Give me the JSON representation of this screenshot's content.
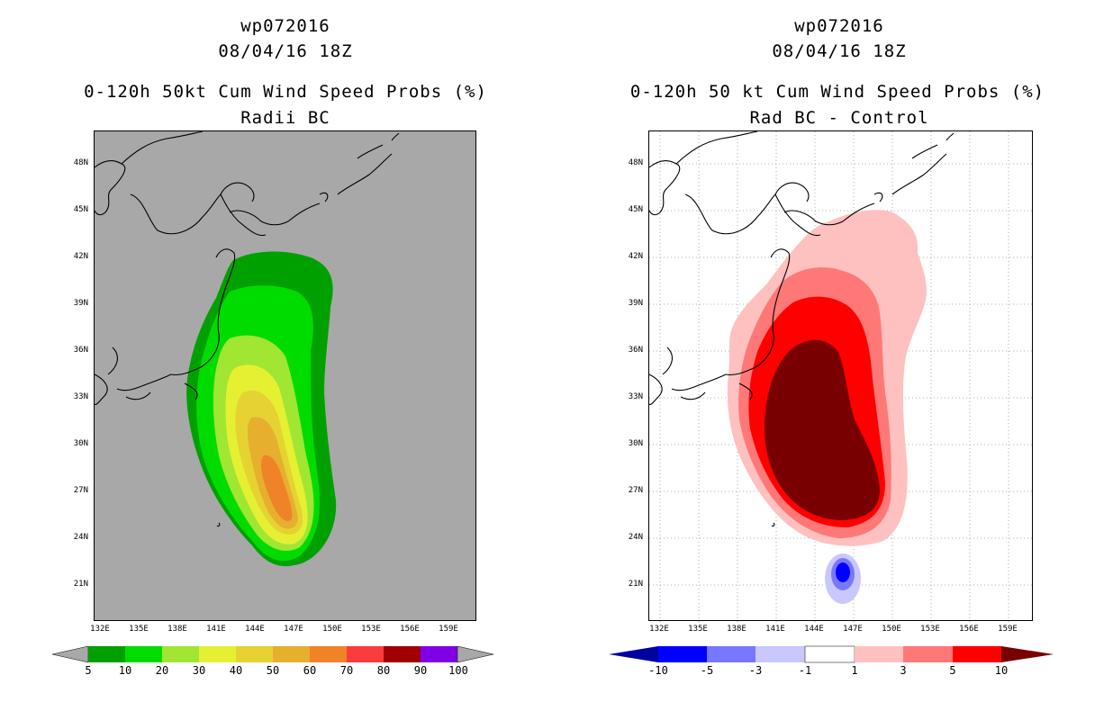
{
  "left_panel": {
    "storm_id": "wp072016",
    "datetime": "08/04/16 18Z",
    "title": "0-120h 50kt Cum Wind Speed Probs (%)",
    "subtitle": "Radii BC",
    "background_color": "#a8a8a8",
    "lat_labels": [
      "48N",
      "45N",
      "42N",
      "39N",
      "36N",
      "33N",
      "30N",
      "27N",
      "24N",
      "21N"
    ],
    "lon_labels": [
      "132E",
      "135E",
      "138E",
      "141E",
      "144E",
      "147E",
      "150E",
      "153E",
      "156E",
      "159E"
    ],
    "colorbar": {
      "levels": [
        "5",
        "10",
        "20",
        "30",
        "40",
        "50",
        "60",
        "70",
        "80",
        "90",
        "100"
      ],
      "colors": [
        "#00a000",
        "#00dc00",
        "#a0e632",
        "#e6f032",
        "#e6d232",
        "#e6af2d",
        "#f08228",
        "#fa3c3c",
        "#a00000",
        "#8000e6"
      ],
      "end_color": "#a8a8a8"
    }
  },
  "right_panel": {
    "storm_id": "wp072016",
    "datetime": "08/04/16 18Z",
    "title": "0-120h 50 kt Cum Wind Speed Probs (%)",
    "subtitle": "Rad BC - Control",
    "background_color": "#ffffff",
    "lat_labels": [
      "48N",
      "45N",
      "42N",
      "39N",
      "36N",
      "33N",
      "30N",
      "27N",
      "24N",
      "21N"
    ],
    "lon_labels": [
      "132E",
      "135E",
      "138E",
      "141E",
      "144E",
      "147E",
      "150E",
      "153E",
      "156E",
      "159E"
    ],
    "colorbar": {
      "levels": [
        "-10",
        "-5",
        "-3",
        "-1",
        "1",
        "3",
        "5",
        "10"
      ],
      "colors": [
        "#0000ff",
        "#7878ff",
        "#c8c8ff",
        "#ffffff",
        "#ffc0c0",
        "#ff7878",
        "#ff0000"
      ],
      "low_end_color": "#0000a0",
      "high_end_color": "#780000"
    }
  }
}
